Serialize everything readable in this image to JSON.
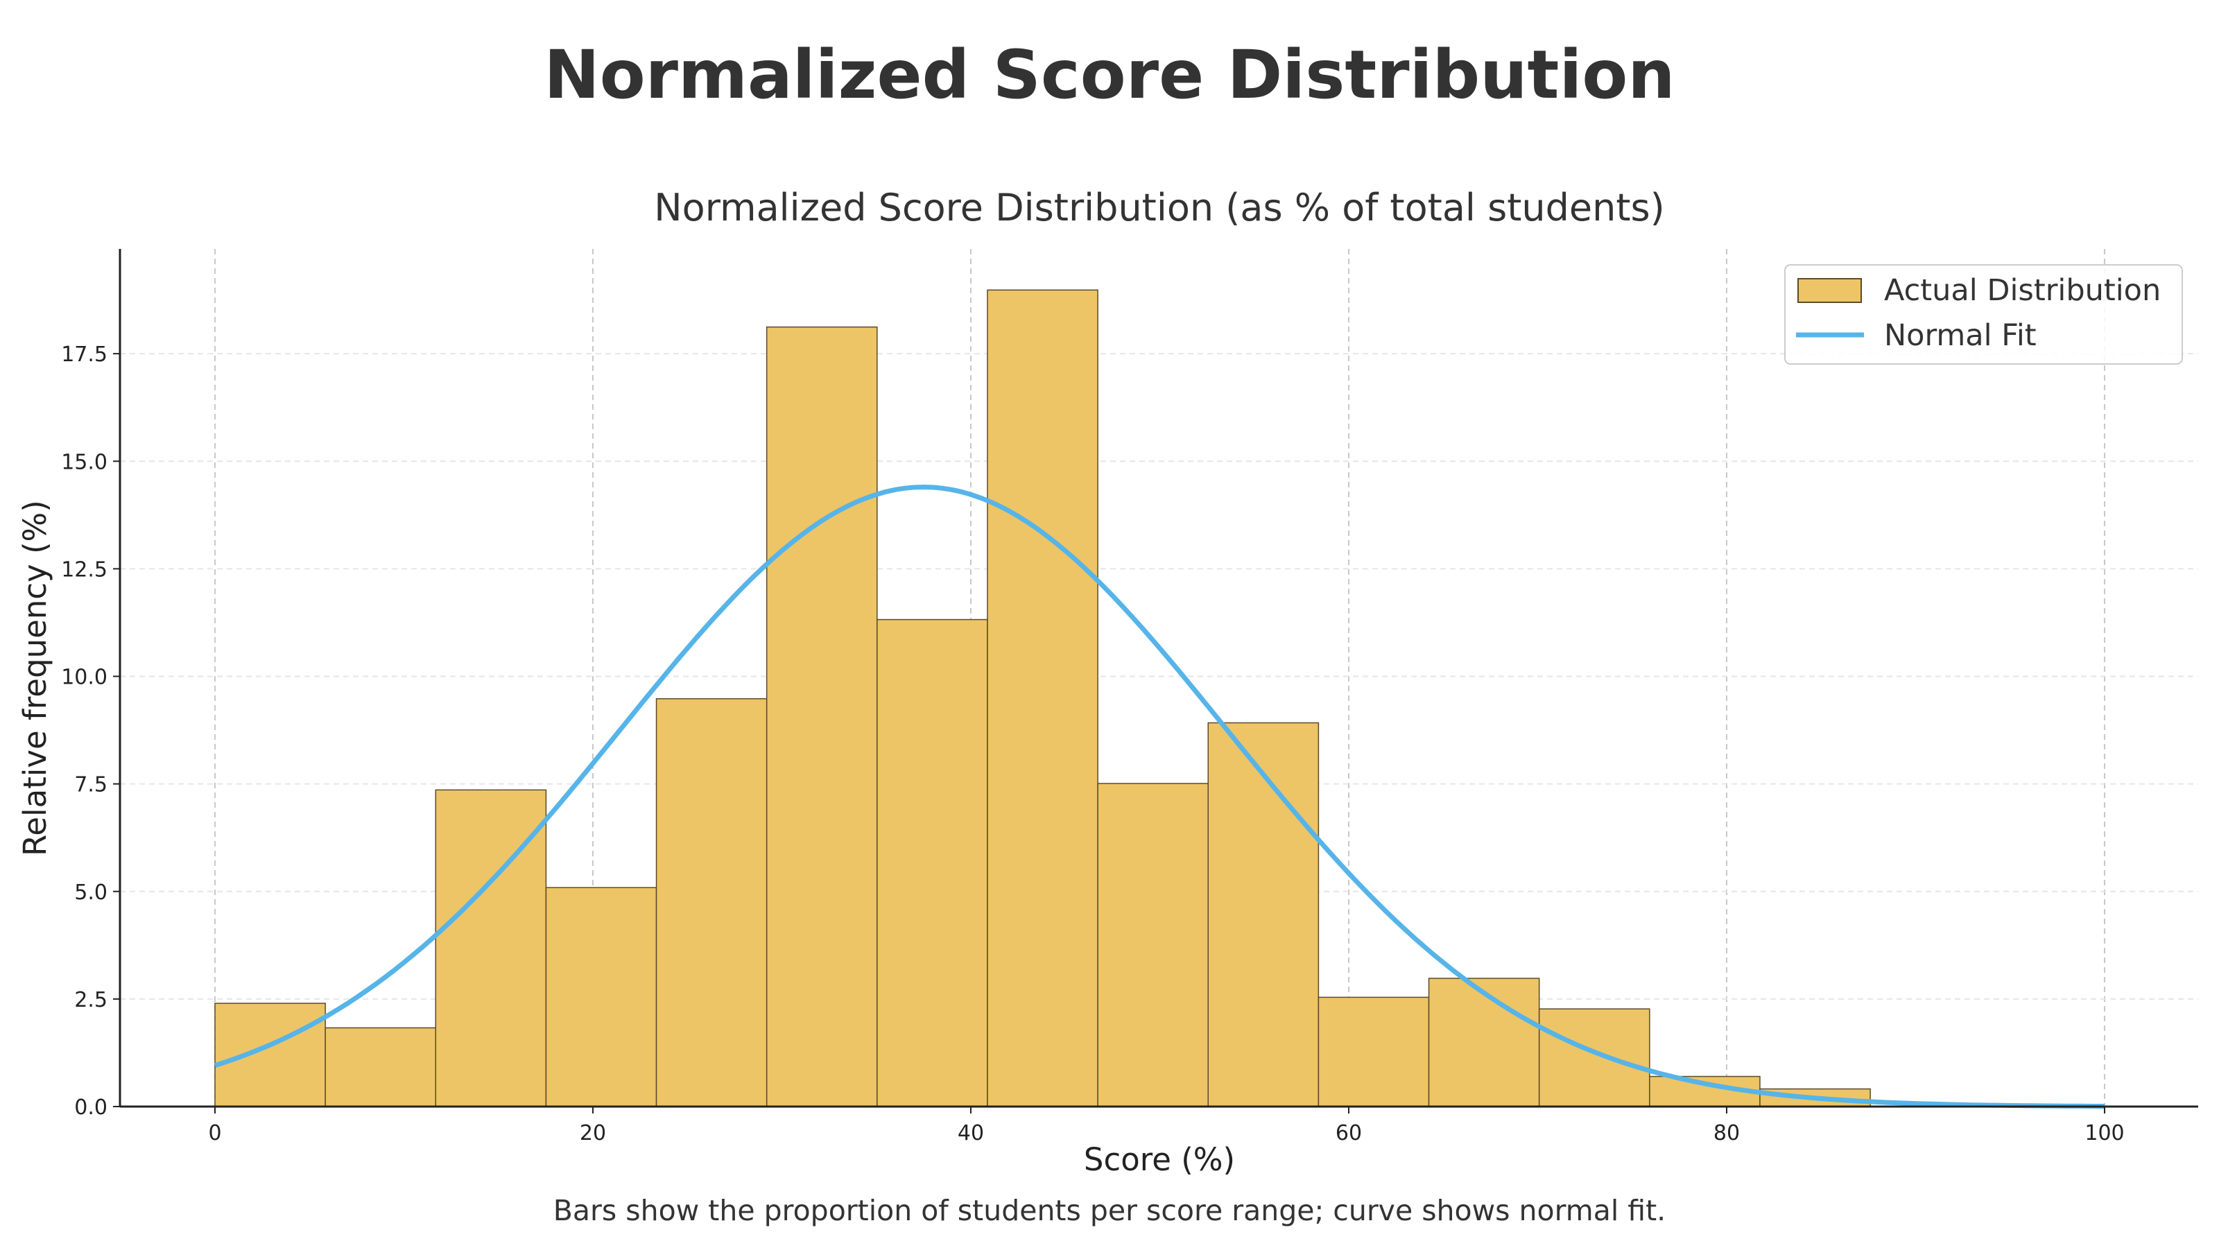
{
  "page_title": "Normalized Score Distribution",
  "caption": "Bars show the proportion of students per score range; curve shows normal fit.",
  "colors": {
    "bar": "#EDC566",
    "bar_edge": "#5a4a2a",
    "curve": "#56B4E9",
    "text": "#333333"
  },
  "chart_data": {
    "type": "bar",
    "title": "Normalized Score Distribution (as % of total students)",
    "xlabel": "Score (%)",
    "ylabel": "Relative frequency (%)",
    "xlim": [
      -5,
      105
    ],
    "ylim": [
      0,
      19.9
    ],
    "xticks": [
      0,
      20,
      40,
      60,
      80,
      100
    ],
    "yticks": [
      "0.0",
      "2.5",
      "5.0",
      "7.5",
      "10.0",
      "12.5",
      "15.0",
      "17.5"
    ],
    "grid": true,
    "legend_position": "top-right",
    "bin_start": 0,
    "bin_width": 5.84,
    "series": [
      {
        "name": "Actual Distribution",
        "type": "bar",
        "values": [
          2.4,
          1.83,
          7.36,
          5.09,
          9.48,
          18.12,
          11.32,
          18.98,
          7.51,
          8.92,
          2.54,
          2.98,
          2.27,
          0.7,
          0.41
        ]
      },
      {
        "name": "Normal Fit",
        "type": "line",
        "mean": 37.5,
        "std": 16.1,
        "peak": 14.4,
        "x_range": [
          0,
          100
        ]
      }
    ]
  }
}
